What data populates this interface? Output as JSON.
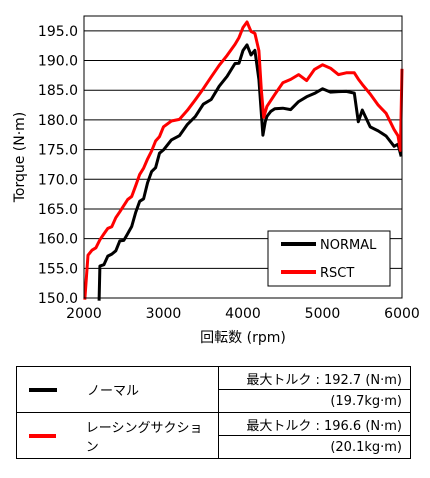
{
  "chart_data": {
    "type": "line",
    "xlabel": "回転数 (rpm)",
    "ylabel": "Torque (N·m)",
    "xlim": [
      2000,
      6000
    ],
    "ylim": [
      150.0,
      197.5
    ],
    "x_ticks": [
      "2000",
      "3000",
      "4000",
      "5000",
      "6000"
    ],
    "y_ticks": [
      "150.0",
      "155.0",
      "160.0",
      "165.0",
      "170.0",
      "175.0",
      "180.0",
      "185.0",
      "190.0",
      "195.0"
    ],
    "grid": "horizontal",
    "legend_position": "bottom-right",
    "series": [
      {
        "name": "NORMAL",
        "color": "#000000",
        "x": [
          2190,
          2200,
          2250,
          2300,
          2350,
          2400,
          2450,
          2500,
          2550,
          2600,
          2650,
          2700,
          2750,
          2800,
          2850,
          2900,
          2950,
          3000,
          3100,
          3200,
          3300,
          3400,
          3500,
          3600,
          3700,
          3800,
          3900,
          3950,
          4000,
          4050,
          4100,
          4150,
          4200,
          4250,
          4280,
          4300,
          4350,
          4400,
          4500,
          4600,
          4700,
          4800,
          4900,
          5000,
          5100,
          5200,
          5300,
          5400,
          5450,
          5500,
          5600,
          5700,
          5800,
          5900,
          5950,
          5990
        ],
        "values": [
          150.0,
          155.0,
          156.0,
          157.0,
          157.5,
          158.0,
          159.5,
          160.0,
          161.0,
          162.0,
          164.0,
          166.0,
          167.0,
          169.0,
          171.0,
          172.0,
          174.0,
          175.0,
          176.5,
          177.5,
          179.0,
          180.5,
          182.5,
          183.5,
          186.0,
          187.5,
          189.5,
          190.0,
          192.0,
          192.7,
          190.5,
          191.5,
          187.0,
          177.5,
          180.0,
          180.5,
          181.0,
          181.5,
          182.0,
          181.5,
          183.0,
          183.5,
          184.5,
          185.5,
          184.5,
          184.5,
          185.0,
          184.5,
          180.0,
          182.0,
          179.0,
          178.5,
          177.0,
          175.5,
          176.0,
          173.5
        ]
      },
      {
        "name": "RSCT",
        "color": "#ff0000",
        "x": [
          2010,
          2050,
          2100,
          2150,
          2200,
          2250,
          2300,
          2350,
          2400,
          2450,
          2500,
          2550,
          2600,
          2650,
          2700,
          2750,
          2800,
          2850,
          2900,
          2950,
          3000,
          3100,
          3200,
          3300,
          3400,
          3500,
          3600,
          3700,
          3800,
          3900,
          3950,
          4000,
          4050,
          4100,
          4150,
          4200,
          4230,
          4260,
          4300,
          4400,
          4500,
          4600,
          4700,
          4800,
          4900,
          5000,
          5100,
          5200,
          5300,
          5400,
          5450,
          5500,
          5600,
          5700,
          5800,
          5900,
          5950,
          5980,
          6000
        ],
        "values": [
          150.0,
          157.0,
          158.0,
          158.5,
          160.0,
          160.5,
          161.5,
          162.0,
          163.5,
          164.5,
          166.0,
          166.5,
          167.0,
          169.0,
          170.5,
          172.0,
          173.5,
          175.0,
          176.0,
          177.0,
          178.5,
          179.5,
          180.5,
          181.5,
          183.0,
          185.5,
          187.0,
          189.5,
          190.5,
          193.0,
          194.0,
          195.5,
          196.6,
          195.0,
          194.5,
          192.0,
          185.0,
          180.0,
          182.5,
          184.5,
          186.0,
          186.5,
          187.5,
          187.0,
          188.5,
          189.0,
          188.5,
          188.0,
          188.0,
          187.5,
          186.5,
          186.0,
          184.5,
          182.5,
          181.5,
          178.0,
          177.5,
          175.0,
          188.5
        ]
      }
    ]
  },
  "spec_table": {
    "rows": [
      {
        "series_label": "ノーマル",
        "color": "#000000",
        "max_torque": "最大トルク : 192.7 (N·m)",
        "max_torque_kg": "(19.7kg·m)"
      },
      {
        "series_label": "レーシングサクション",
        "color": "#ff0000",
        "max_torque": "最大トルク : 196.6 (N·m)",
        "max_torque_kg": "(20.1kg·m)"
      }
    ]
  }
}
